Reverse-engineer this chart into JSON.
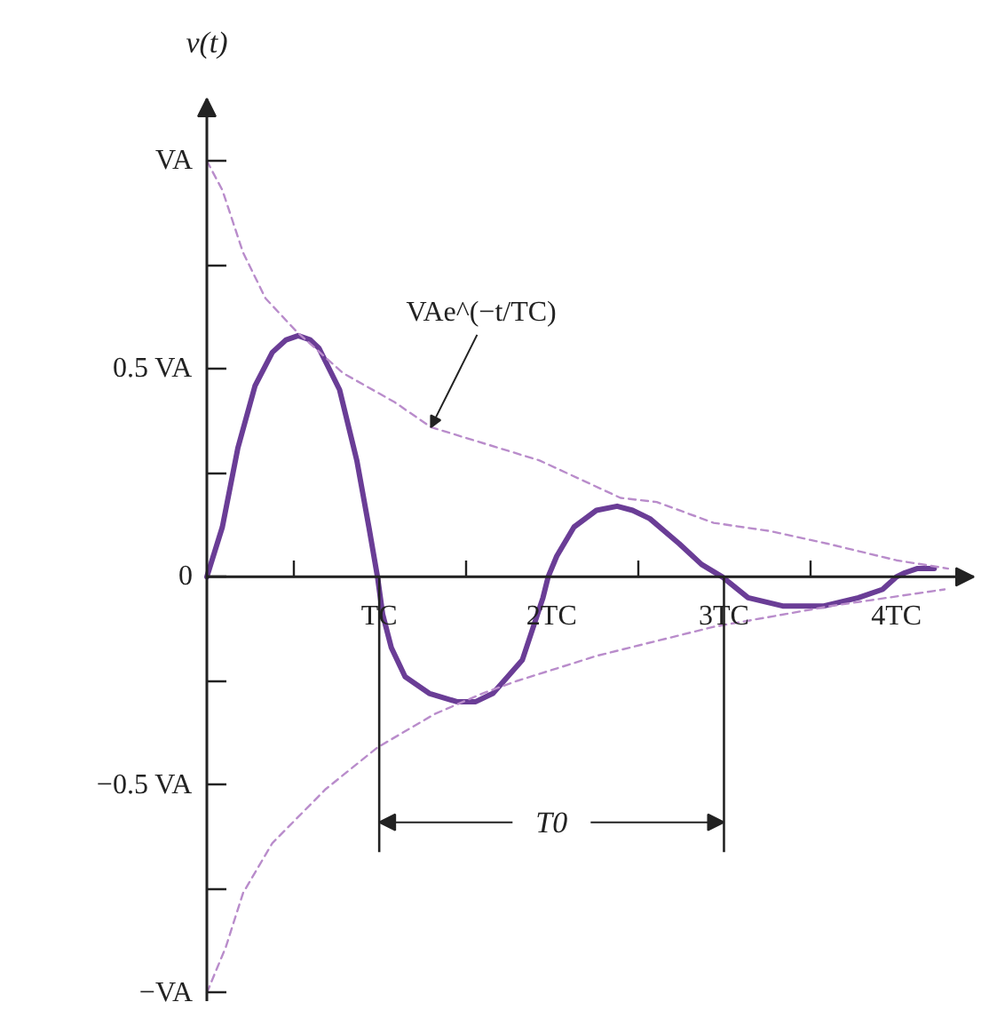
{
  "chart_data": {
    "type": "line",
    "ylabel": "v(t)",
    "xlim": [
      0,
      4.45
    ],
    "ylim": [
      -1.02,
      1.15
    ],
    "xticks": [
      {
        "value": 0.5,
        "label": null
      },
      {
        "value": 1,
        "label": "TC"
      },
      {
        "value": 1.5,
        "label": null
      },
      {
        "value": 2,
        "label": "2TC"
      },
      {
        "value": 2.5,
        "label": null
      },
      {
        "value": 3,
        "label": "3TC"
      },
      {
        "value": 3.5,
        "label": null
      },
      {
        "value": 4,
        "label": "4TC"
      }
    ],
    "yticks": [
      {
        "value": -1,
        "label": "−VA"
      },
      {
        "value": -0.75,
        "label": null
      },
      {
        "value": -0.5,
        "label": "−0.5 VA"
      },
      {
        "value": -0.25,
        "label": null
      },
      0,
      {
        "value": 0.25,
        "label": null
      },
      {
        "value": 0.5,
        "label": "0.5 VA"
      },
      {
        "value": 0.75,
        "label": null
      },
      {
        "value": 1,
        "label": "VA"
      }
    ],
    "series": [
      {
        "color": "#6a3d96",
        "line_style": "solid",
        "x": [
          0,
          0.09,
          0.18,
          0.28,
          0.38,
          0.46,
          0.53,
          0.6,
          0.65,
          0.77,
          0.87,
          0.94,
          0.99,
          1.02,
          1.07,
          1.15,
          1.29,
          1.45,
          1.56,
          1.66,
          1.83,
          1.95,
          1.98,
          2.03,
          2.13,
          2.26,
          2.38,
          2.47,
          2.57,
          2.74,
          2.87,
          2.99,
          3.14,
          3.34,
          3.58,
          3.78,
          3.92,
          4.0,
          4.05,
          4.12,
          4.22
        ],
        "values": [
          0,
          0.12,
          0.31,
          0.46,
          0.54,
          0.57,
          0.58,
          0.57,
          0.55,
          0.45,
          0.28,
          0.12,
          0,
          -0.09,
          -0.17,
          -0.24,
          -0.28,
          -0.3,
          -0.3,
          -0.28,
          -0.2,
          -0.05,
          0,
          0.05,
          0.12,
          0.16,
          0.17,
          0.16,
          0.14,
          0.08,
          0.03,
          0,
          -0.05,
          -0.07,
          -0.07,
          -0.05,
          -0.03,
          0,
          0.01,
          0.02,
          0.02
        ]
      },
      {
        "color": "#b98ccb",
        "line_style": "dashed",
        "x": [
          0,
          0.09,
          0.21,
          0.34,
          0.52,
          0.79,
          1.09,
          1.3,
          1.93,
          2.4,
          2.61,
          2.94,
          3.27,
          3.6,
          4.0,
          4.3
        ],
        "values": [
          1,
          0.93,
          0.78,
          0.67,
          0.59,
          0.49,
          0.42,
          0.36,
          0.28,
          0.19,
          0.18,
          0.13,
          0.11,
          0.08,
          0.04,
          0.02
        ]
      },
      {
        "color": "#b98ccb",
        "line_style": "dashed",
        "x": [
          0,
          0.11,
          0.21,
          0.38,
          0.69,
          0.99,
          1.32,
          1.6,
          1.8,
          2.26,
          2.94,
          3.62,
          4.28
        ],
        "values": [
          -1,
          -0.89,
          -0.76,
          -0.64,
          -0.51,
          -0.41,
          -0.33,
          -0.28,
          -0.25,
          -0.19,
          -0.12,
          -0.07,
          -0.03
        ]
      }
    ],
    "ref_lines": [
      {
        "axis": "x",
        "value": 1
      },
      {
        "axis": "x",
        "value": 3
      }
    ],
    "annotations": [
      {
        "text": "VAe^(−t/TC)",
        "x": 1.3,
        "y": 0.36
      },
      {
        "text": "T0",
        "x": 1,
        "y": -0.59
      }
    ]
  }
}
